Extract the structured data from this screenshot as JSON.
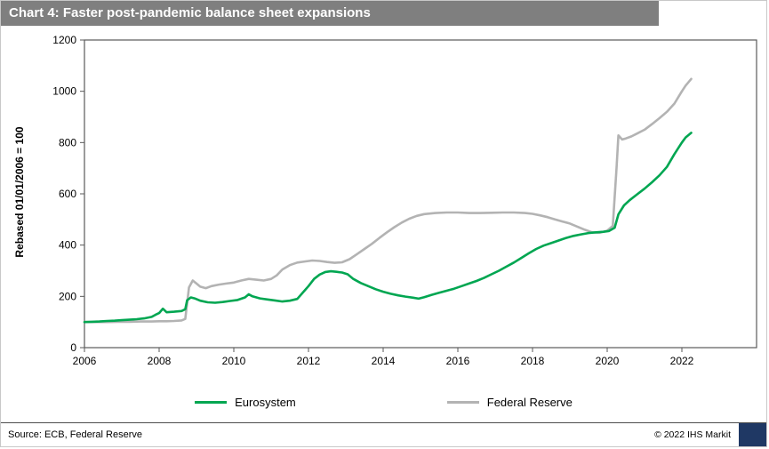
{
  "title_bar": {
    "text": "Chart 4: Faster post-pandemic balance sheet expansions"
  },
  "footer": {
    "source": "Source: ECB, Federal Reserve",
    "copyright": "© 2022  IHS Markit"
  },
  "colors": {
    "title_bar_bg": "#7f7f7f",
    "brand_box": "#1f3864",
    "plot_border": "#595959",
    "eurosystem_green": "#00a651",
    "fed_gray": "#b3b3b3"
  },
  "chart_data": {
    "type": "line",
    "title": "Chart 4: Faster post-pandemic balance sheet expansions",
    "xlabel": "",
    "ylabel": "Rebased 01/01/2006  = 100",
    "x_range": [
      2006,
      2024
    ],
    "y_range": [
      0,
      1200
    ],
    "x_ticks": [
      2006,
      2008,
      2010,
      2012,
      2014,
      2016,
      2018,
      2020,
      2022
    ],
    "y_ticks": [
      0,
      200,
      400,
      600,
      800,
      1000,
      1200
    ],
    "grid": false,
    "legend_position": "bottom",
    "series": [
      {
        "name": "Eurosystem",
        "color": "#00a651",
        "x": [
          2006.0,
          2006.2,
          2006.4,
          2006.6,
          2006.8,
          2007.0,
          2007.2,
          2007.4,
          2007.6,
          2007.8,
          2007.9,
          2008.0,
          2008.1,
          2008.2,
          2008.4,
          2008.6,
          2008.7,
          2008.75,
          2008.85,
          2008.95,
          2009.1,
          2009.3,
          2009.5,
          2009.7,
          2009.9,
          2010.1,
          2010.3,
          2010.4,
          2010.5,
          2010.7,
          2010.9,
          2011.1,
          2011.3,
          2011.5,
          2011.7,
          2011.85,
          2012.0,
          2012.15,
          2012.3,
          2012.45,
          2012.6,
          2012.75,
          2012.9,
          2013.05,
          2013.2,
          2013.4,
          2013.6,
          2013.8,
          2014.0,
          2014.2,
          2014.4,
          2014.6,
          2014.8,
          2014.95,
          2015.1,
          2015.3,
          2015.5,
          2015.7,
          2015.9,
          2016.1,
          2016.3,
          2016.5,
          2016.7,
          2016.9,
          2017.1,
          2017.3,
          2017.5,
          2017.7,
          2017.9,
          2018.1,
          2018.3,
          2018.5,
          2018.7,
          2018.9,
          2019.1,
          2019.3,
          2019.5,
          2019.7,
          2019.9,
          2020.05,
          2020.2,
          2020.3,
          2020.45,
          2020.6,
          2020.8,
          2021.0,
          2021.2,
          2021.4,
          2021.6,
          2021.8,
          2022.0,
          2022.1,
          2022.25
        ],
        "y": [
          100,
          101,
          102,
          104,
          105,
          107,
          109,
          111,
          114,
          120,
          128,
          135,
          152,
          138,
          140,
          143,
          150,
          185,
          196,
          192,
          183,
          177,
          175,
          178,
          182,
          186,
          196,
          208,
          200,
          192,
          188,
          184,
          180,
          183,
          190,
          215,
          240,
          268,
          285,
          295,
          298,
          296,
          293,
          286,
          268,
          252,
          240,
          228,
          218,
          210,
          204,
          199,
          195,
          191,
          197,
          206,
          214,
          222,
          230,
          240,
          250,
          260,
          272,
          286,
          300,
          316,
          332,
          350,
          368,
          385,
          398,
          408,
          418,
          428,
          436,
          442,
          447,
          450,
          452,
          455,
          468,
          520,
          555,
          575,
          598,
          620,
          645,
          672,
          705,
          755,
          800,
          820,
          838
        ]
      },
      {
        "name": "Federal Reserve",
        "color": "#b3b3b3",
        "x": [
          2006.0,
          2006.3,
          2006.6,
          2006.9,
          2007.2,
          2007.5,
          2007.8,
          2008.0,
          2008.2,
          2008.4,
          2008.6,
          2008.7,
          2008.8,
          2008.9,
          2009.0,
          2009.1,
          2009.25,
          2009.4,
          2009.6,
          2009.8,
          2010.0,
          2010.2,
          2010.4,
          2010.6,
          2010.8,
          2011.0,
          2011.15,
          2011.3,
          2011.5,
          2011.7,
          2011.9,
          2012.1,
          2012.3,
          2012.5,
          2012.7,
          2012.9,
          2013.1,
          2013.3,
          2013.5,
          2013.7,
          2013.9,
          2014.1,
          2014.3,
          2014.5,
          2014.7,
          2014.9,
          2015.1,
          2015.4,
          2015.7,
          2016.0,
          2016.3,
          2016.6,
          2016.9,
          2017.2,
          2017.5,
          2017.8,
          2018.0,
          2018.2,
          2018.4,
          2018.6,
          2018.8,
          2019.0,
          2019.2,
          2019.4,
          2019.6,
          2019.8,
          2020.0,
          2020.15,
          2020.25,
          2020.3,
          2020.4,
          2020.5,
          2020.65,
          2020.8,
          2021.0,
          2021.2,
          2021.4,
          2021.6,
          2021.8,
          2022.0,
          2022.1,
          2022.25
        ],
        "y": [
          100,
          100,
          100,
          101,
          101,
          102,
          102,
          103,
          103,
          104,
          106,
          112,
          235,
          262,
          250,
          238,
          232,
          240,
          246,
          250,
          254,
          262,
          268,
          265,
          262,
          268,
          282,
          305,
          322,
          332,
          336,
          340,
          338,
          334,
          331,
          333,
          345,
          365,
          385,
          405,
          428,
          450,
          470,
          488,
          503,
          514,
          521,
          525,
          527,
          527,
          525,
          525,
          526,
          527,
          527,
          525,
          522,
          516,
          509,
          500,
          492,
          484,
          472,
          460,
          450,
          448,
          456,
          475,
          700,
          828,
          812,
          816,
          824,
          835,
          850,
          872,
          895,
          920,
          952,
          1000,
          1022,
          1048
        ]
      }
    ]
  }
}
